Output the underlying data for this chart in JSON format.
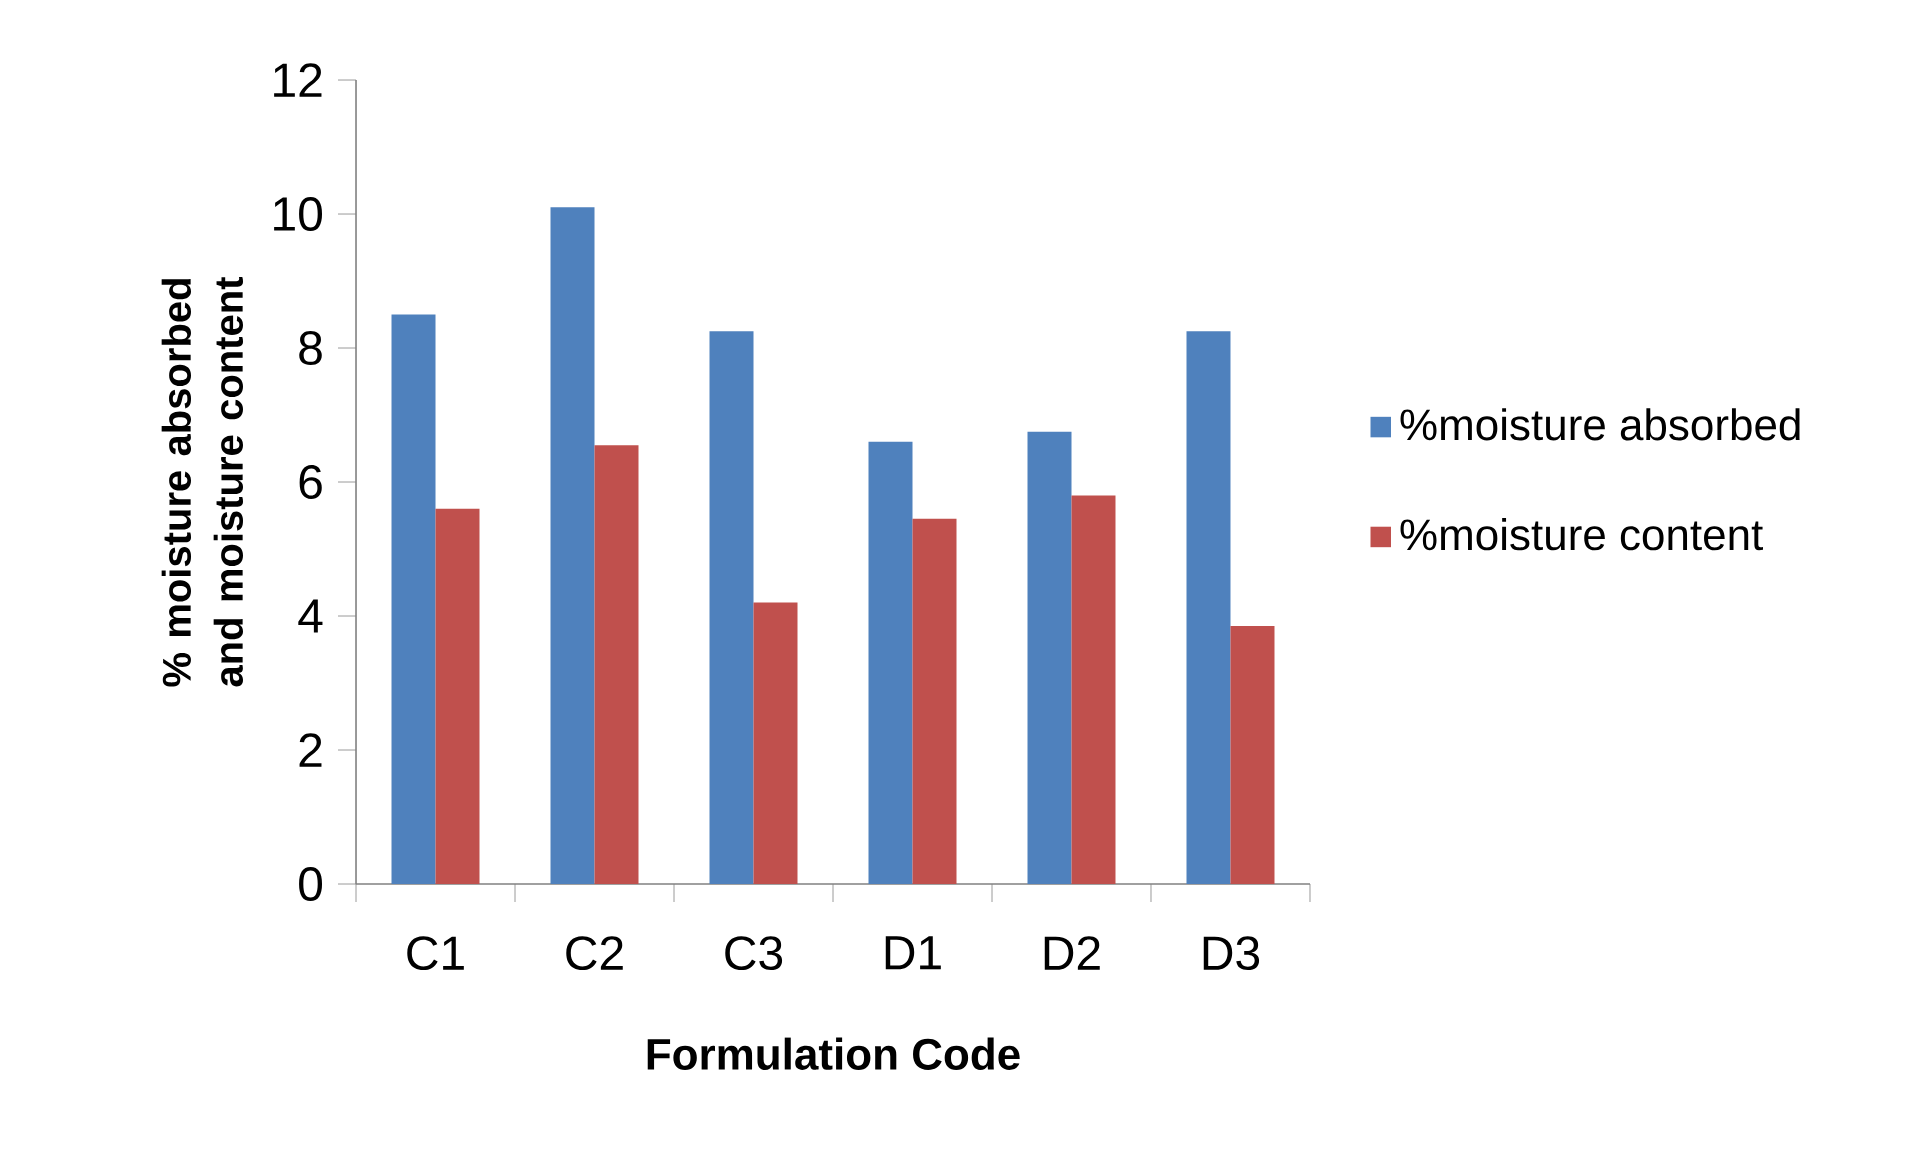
{
  "chart_data": {
    "type": "bar",
    "xlabel": "Formulation Code",
    "ylabel": "% moisture absorbed and moisture content",
    "categories": [
      "C1",
      "C2",
      "C3",
      "D1",
      "D2",
      "D3"
    ],
    "series": [
      {
        "name": "%moisture absorbed",
        "color": "#4f81bd",
        "values": [
          8.5,
          10.1,
          8.25,
          6.6,
          6.75,
          8.25
        ]
      },
      {
        "name": "%moisture content",
        "color": "#c0504d",
        "values": [
          5.6,
          6.55,
          4.2,
          5.45,
          5.8,
          3.85
        ]
      }
    ],
    "ylim": [
      0,
      12
    ],
    "yticks": [
      0,
      2,
      4,
      6,
      8,
      10,
      12
    ],
    "legend": "right"
  }
}
